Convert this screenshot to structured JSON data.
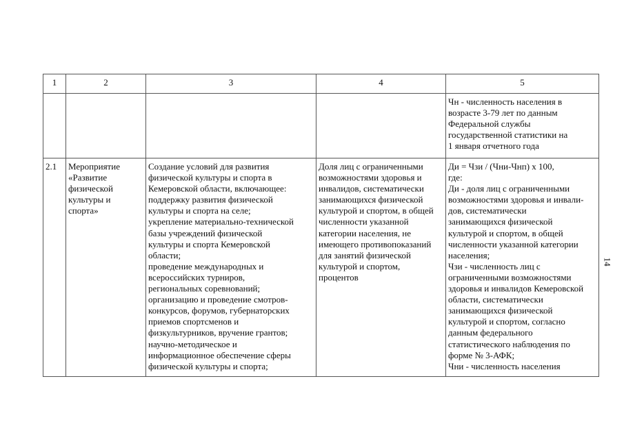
{
  "page_number": "14",
  "table": {
    "headers": [
      "1",
      "2",
      "3",
      "4",
      "5"
    ],
    "rows": [
      {
        "cells": [
          [],
          [],
          [],
          [],
          [
            "Чн - численность населения в",
            "возрасте 3-79 лет по данным",
            "Федеральной службы",
            "государственной статистики на",
            "1 января отчетного года"
          ]
        ]
      },
      {
        "cells": [
          [
            "2.1"
          ],
          [
            "Мероприятие",
            "«Развитие",
            "физической",
            "культуры и",
            "спорта»"
          ],
          [
            "Создание условий для развития",
            "физической культуры и спорта в",
            "Кемеровской области, включающее:",
            "поддержку развития физической",
            "культуры и спорта на селе;",
            "укрепление материально-технической",
            "базы учреждений физической",
            "культуры и спорта Кемеровской",
            "области;",
            "проведение международных и",
            "всероссийских турниров,",
            "региональных соревнований;",
            "организацию и проведение смотров-",
            "конкурсов, форумов, губернаторских",
            "приемов спортсменов и",
            "физкультурников, вручение грантов;",
            "научно-методическое и",
            "информационное обеспечение сферы",
            "физической культуры и спорта;"
          ],
          [
            "Доля лиц с ограниченными",
            "возможностями здоровья и",
            "инвалидов, систематически",
            "занимающихся физической",
            "культурой и спортом, в общей",
            "численности указанной",
            "категории населения, не",
            "имеющего противопоказаний",
            "для занятий физической",
            "культурой и спортом,",
            "процентов"
          ],
          [
            "Ди = Чзи / (Чни-Чнп) x 100,",
            "где:",
            "Ди - доля лиц с ограниченными",
            "возможностями здоровья и инвали-",
            "дов, систематически",
            "занимающихся физической",
            "культурой и спортом, в общей",
            "численности указанной категории",
            "населения;",
            "Чзи - численность лиц с",
            "ограниченными возможностями",
            "здоровья и инвалидов Кемеровской",
            "области, систематически",
            "занимающихся физической",
            "культурой и спортом, согласно",
            "данным федерального",
            "статистического наблюдения по",
            "форме № 3-АФК;",
            "Чни - численность населения"
          ]
        ]
      }
    ]
  }
}
